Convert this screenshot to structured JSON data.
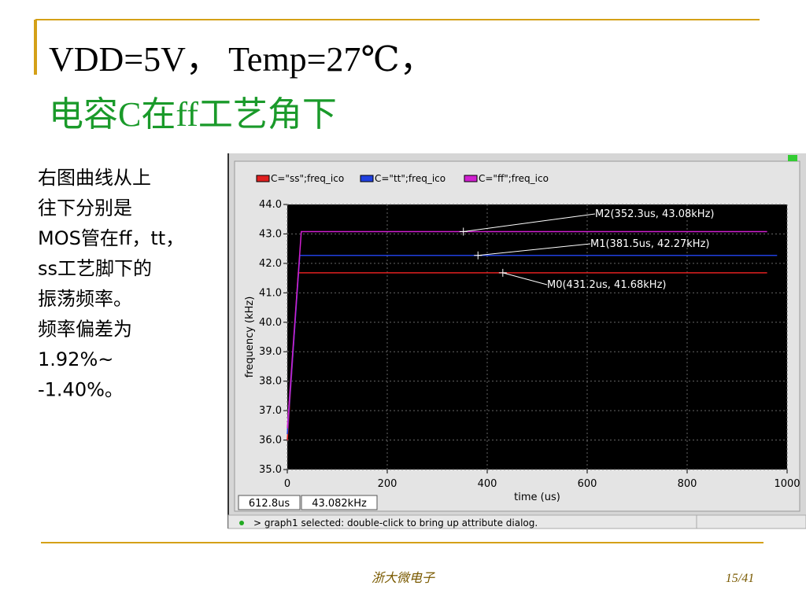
{
  "slide": {
    "title_line1": "VDD=5V， Temp=27℃，",
    "title_line2": "电容C在ff工艺角下",
    "body": [
      "右图曲线从上",
      "往下分别是",
      "MOS管在ff，tt，",
      "ss工艺脚下的",
      "振荡频率。",
      "频率偏差为",
      "1.92%~",
      "-1.40%。"
    ],
    "footer_center": "浙大微电子",
    "footer_page": "15/41"
  },
  "window": {
    "status_x": "612.8us",
    "status_y": "43.082kHz",
    "message": "> graph1 selected: double-click to bring up attribute dialog."
  },
  "chart_data": {
    "type": "line",
    "x_label": "time (us)",
    "y_label": "frequency (kHz)",
    "xlim": [
      0,
      1000
    ],
    "xticks": [
      0,
      200,
      400,
      600,
      800,
      1000
    ],
    "ylim": [
      35,
      44
    ],
    "yticks": [
      {
        "value": 35,
        "label": "35.0"
      },
      {
        "value": 36,
        "label": "36.0"
      },
      {
        "value": 37,
        "label": "37.0"
      },
      {
        "value": 38,
        "label": "38.0"
      },
      {
        "value": 39,
        "label": "39.0"
      },
      {
        "value": 40,
        "label": "40.0"
      },
      {
        "value": 41,
        "label": "41.0"
      },
      {
        "value": 42,
        "label": "42.0"
      },
      {
        "value": 43,
        "label": "43.0"
      },
      {
        "value": 44,
        "label": "44.0"
      }
    ],
    "grid": true,
    "series": [
      {
        "name": "C=\"ss\";freq_ico",
        "color": "#e02020",
        "x": [
          0,
          22,
          960
        ],
        "values": [
          36.0,
          41.68,
          41.68
        ]
      },
      {
        "name": "C=\"tt\";freq_ico",
        "color": "#2040e0",
        "x": [
          0,
          25,
          980
        ],
        "values": [
          36.2,
          42.27,
          42.27
        ]
      },
      {
        "name": "C=\"ff\";freq_ico",
        "color": "#d020d0",
        "x": [
          0,
          28,
          960
        ],
        "values": [
          36.4,
          43.08,
          43.08
        ]
      }
    ],
    "markers": [
      {
        "label": "M2(352.3us, 43.08kHz)",
        "x": 352.3,
        "y": 43.08
      },
      {
        "label": "M1(381.5us, 42.27kHz)",
        "x": 381.5,
        "y": 42.27
      },
      {
        "label": "M0(431.2us, 41.68kHz)",
        "x": 431.2,
        "y": 41.68
      }
    ]
  }
}
